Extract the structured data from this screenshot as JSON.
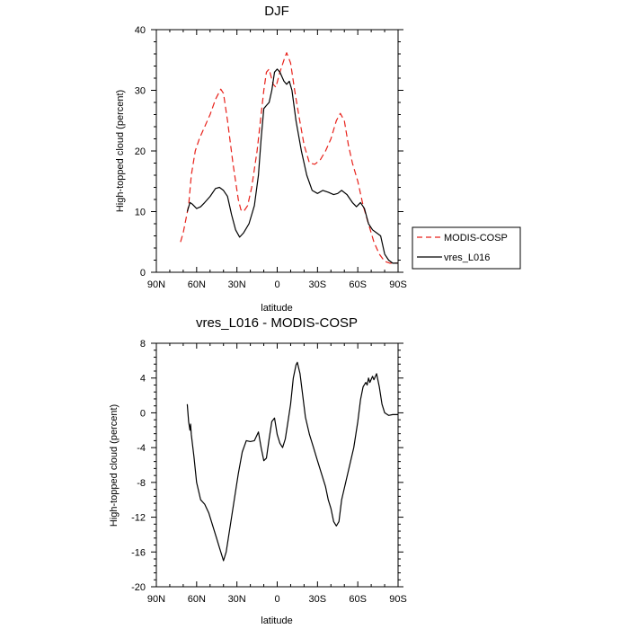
{
  "chart_data": [
    {
      "type": "line",
      "title": "DJF",
      "xlabel": "latitude",
      "ylabel": "High-topped cloud (percent)",
      "xlim": [
        90,
        -90
      ],
      "ylim": [
        0,
        40
      ],
      "x_ticks": [
        90,
        60,
        30,
        0,
        -30,
        -60,
        -90
      ],
      "x_tick_labels": [
        "90N",
        "60N",
        "30N",
        "0",
        "30S",
        "60S",
        "90S"
      ],
      "y_ticks": [
        0,
        10,
        20,
        30,
        40
      ],
      "y_tick_labels": [
        "0",
        "10",
        "20",
        "30",
        "40"
      ],
      "legend_position": "outside-right",
      "series": [
        {
          "name": "MODIS-COSP",
          "color": "#e8211a",
          "dash": "dashed",
          "points": [
            [
              72,
              5
            ],
            [
              70,
              6.5
            ],
            [
              66,
              11
            ],
            [
              64,
              16
            ],
            [
              61,
              20
            ],
            [
              58,
              22
            ],
            [
              55,
              23.5
            ],
            [
              50,
              26
            ],
            [
              46,
              28.5
            ],
            [
              42,
              30.2
            ],
            [
              40,
              29.5
            ],
            [
              37,
              25
            ],
            [
              33,
              18
            ],
            [
              29,
              12
            ],
            [
              27,
              10.3
            ],
            [
              25,
              10
            ],
            [
              22,
              11
            ],
            [
              19,
              14
            ],
            [
              15,
              20
            ],
            [
              12,
              26
            ],
            [
              10,
              30
            ],
            [
              8,
              33
            ],
            [
              6,
              33.5
            ],
            [
              3,
              31
            ],
            [
              1,
              30.5
            ],
            [
              -2,
              33
            ],
            [
              -5,
              35
            ],
            [
              -7,
              36.2
            ],
            [
              -10,
              34.5
            ],
            [
              -13,
              30
            ],
            [
              -16,
              26
            ],
            [
              -20,
              21
            ],
            [
              -24,
              18
            ],
            [
              -28,
              17.8
            ],
            [
              -32,
              18.5
            ],
            [
              -36,
              20
            ],
            [
              -40,
              22
            ],
            [
              -44,
              25
            ],
            [
              -47,
              26.2
            ],
            [
              -50,
              25
            ],
            [
              -53,
              21
            ],
            [
              -56,
              18
            ],
            [
              -60,
              15
            ],
            [
              -64,
              11
            ],
            [
              -68,
              8
            ],
            [
              -72,
              5
            ],
            [
              -76,
              3
            ],
            [
              -80,
              1.8
            ],
            [
              -84,
              1.5
            ],
            [
              -90,
              1.5
            ]
          ]
        },
        {
          "name": "vres_L016",
          "color": "#000000",
          "dash": "solid",
          "points": [
            [
              67,
              10
            ],
            [
              65,
              11.5
            ],
            [
              63,
              11.2
            ],
            [
              60,
              10.5
            ],
            [
              57,
              10.8
            ],
            [
              54,
              11.5
            ],
            [
              50,
              12.5
            ],
            [
              46,
              13.8
            ],
            [
              43,
              14
            ],
            [
              40,
              13.5
            ],
            [
              37,
              12.5
            ],
            [
              34,
              9.5
            ],
            [
              31,
              7
            ],
            [
              28,
              5.8
            ],
            [
              25,
              6.5
            ],
            [
              21,
              8
            ],
            [
              17,
              11
            ],
            [
              14,
              16
            ],
            [
              12,
              22
            ],
            [
              10,
              27
            ],
            [
              8,
              27.5
            ],
            [
              6,
              28
            ],
            [
              4,
              30
            ],
            [
              2,
              33
            ],
            [
              0,
              33.5
            ],
            [
              -2,
              33
            ],
            [
              -5,
              31.5
            ],
            [
              -7,
              31
            ],
            [
              -9,
              31.5
            ],
            [
              -11,
              30
            ],
            [
              -14,
              25
            ],
            [
              -18,
              20
            ],
            [
              -22,
              16
            ],
            [
              -26,
              13.5
            ],
            [
              -30,
              13
            ],
            [
              -34,
              13.5
            ],
            [
              -38,
              13.2
            ],
            [
              -42,
              12.8
            ],
            [
              -45,
              13
            ],
            [
              -48,
              13.5
            ],
            [
              -52,
              12.8
            ],
            [
              -56,
              11.5
            ],
            [
              -59,
              10.8
            ],
            [
              -62,
              11.5
            ],
            [
              -65,
              10.5
            ],
            [
              -68,
              8
            ],
            [
              -71,
              7
            ],
            [
              -74,
              6.5
            ],
            [
              -77,
              6
            ],
            [
              -80,
              3
            ],
            [
              -83,
              2
            ],
            [
              -86,
              1.5
            ],
            [
              -90,
              1.5
            ]
          ]
        }
      ]
    },
    {
      "type": "line",
      "title": "vres_L016 - MODIS-COSP",
      "xlabel": "latitude",
      "ylabel": "High-topped cloud (percent)",
      "xlim": [
        90,
        -90
      ],
      "ylim": [
        -20,
        8
      ],
      "x_ticks": [
        90,
        60,
        30,
        0,
        -30,
        -60,
        -90
      ],
      "x_tick_labels": [
        "90N",
        "60N",
        "30N",
        "0",
        "30S",
        "60S",
        "90S"
      ],
      "y_ticks": [
        -20,
        -16,
        -12,
        -8,
        -4,
        0,
        4,
        8
      ],
      "y_tick_labels": [
        "-20",
        "-16",
        "-12",
        "-8",
        "-4",
        "0",
        "4",
        "8"
      ],
      "series": [
        {
          "name": "",
          "color": "#000000",
          "dash": "solid",
          "points": [
            [
              67,
              1
            ],
            [
              66,
              -1
            ],
            [
              65,
              -2
            ],
            [
              64.5,
              -1.3
            ],
            [
              64,
              -2.5
            ],
            [
              62,
              -5
            ],
            [
              60,
              -8
            ],
            [
              57,
              -10
            ],
            [
              54,
              -10.5
            ],
            [
              51,
              -11.5
            ],
            [
              48,
              -13
            ],
            [
              45,
              -14.5
            ],
            [
              43,
              -15.5
            ],
            [
              41,
              -16.5
            ],
            [
              40,
              -17
            ],
            [
              38,
              -16
            ],
            [
              35,
              -13
            ],
            [
              32,
              -10
            ],
            [
              29,
              -7
            ],
            [
              26,
              -4.5
            ],
            [
              23,
              -3.2
            ],
            [
              20,
              -3.3
            ],
            [
              17,
              -3.2
            ],
            [
              14,
              -2.2
            ],
            [
              12,
              -4
            ],
            [
              10,
              -5.5
            ],
            [
              8,
              -5.2
            ],
            [
              6,
              -3
            ],
            [
              4,
              -1
            ],
            [
              2,
              -0.6
            ],
            [
              0,
              -2.5
            ],
            [
              -2,
              -3.5
            ],
            [
              -4,
              -4
            ],
            [
              -6,
              -3
            ],
            [
              -8,
              -1
            ],
            [
              -10,
              1
            ],
            [
              -12,
              4
            ],
            [
              -14,
              5.5
            ],
            [
              -15,
              5.8
            ],
            [
              -17,
              4.5
            ],
            [
              -19,
              2
            ],
            [
              -21,
              -0.5
            ],
            [
              -24,
              -2.5
            ],
            [
              -27,
              -4
            ],
            [
              -30,
              -5.5
            ],
            [
              -33,
              -7
            ],
            [
              -36,
              -8.5
            ],
            [
              -38,
              -10
            ],
            [
              -40,
              -11
            ],
            [
              -42,
              -12.5
            ],
            [
              -44,
              -13
            ],
            [
              -46,
              -12.5
            ],
            [
              -48,
              -10
            ],
            [
              -51,
              -8
            ],
            [
              -54,
              -6
            ],
            [
              -57,
              -4
            ],
            [
              -60,
              -1
            ],
            [
              -62,
              1.5
            ],
            [
              -64,
              3
            ],
            [
              -66,
              3.5
            ],
            [
              -67,
              3.2
            ],
            [
              -68,
              4
            ],
            [
              -69,
              3.5
            ],
            [
              -71,
              4.2
            ],
            [
              -72,
              3.8
            ],
            [
              -74,
              4.5
            ],
            [
              -76,
              3
            ],
            [
              -78,
              1
            ],
            [
              -80,
              0
            ],
            [
              -83,
              -0.3
            ],
            [
              -86,
              -0.2
            ],
            [
              -90,
              -0.2
            ]
          ]
        }
      ]
    }
  ]
}
